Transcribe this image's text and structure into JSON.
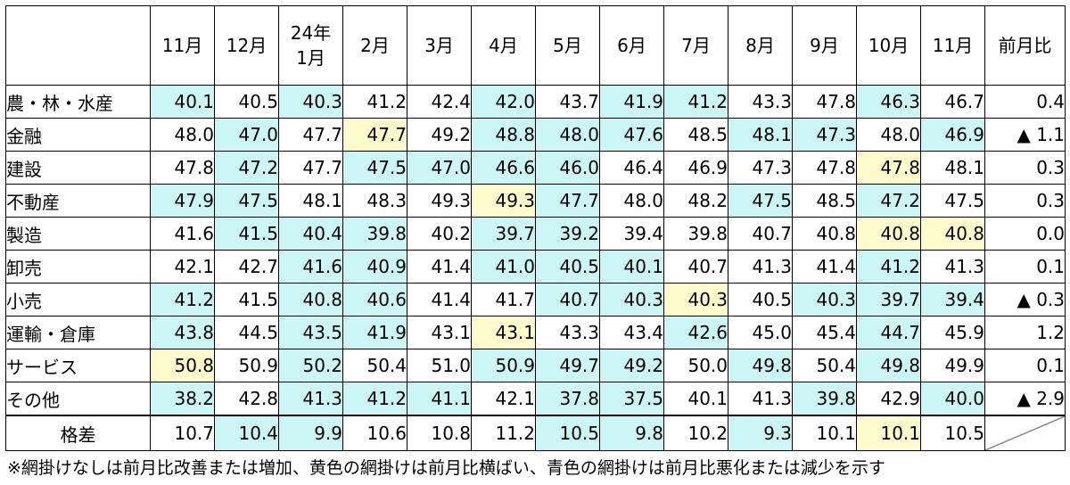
{
  "months": [
    "11月",
    "12月",
    "24年\n1月",
    "2月",
    "3月",
    "4月",
    "5月",
    "6月",
    "7月",
    "8月",
    "9月",
    "10月",
    "11月"
  ],
  "change_header": "前月比",
  "rows": [
    {
      "label": "農・林・水産",
      "values": [
        "40.1",
        "40.5",
        "40.3",
        "41.2",
        "42.4",
        "42.0",
        "43.7",
        "41.9",
        "41.2",
        "43.3",
        "47.8",
        "46.3",
        "46.7"
      ],
      "shade": [
        "b",
        "",
        "b",
        "",
        "",
        "b",
        "",
        "b",
        "b",
        "",
        "",
        "b",
        ""
      ],
      "change": "0.4"
    },
    {
      "label": "金融",
      "values": [
        "48.0",
        "47.0",
        "47.7",
        "47.7",
        "49.2",
        "48.8",
        "48.0",
        "47.6",
        "48.5",
        "48.1",
        "47.3",
        "48.0",
        "46.9"
      ],
      "shade": [
        "",
        "b",
        "",
        "y",
        "",
        "b",
        "b",
        "b",
        "",
        "b",
        "b",
        "",
        "b"
      ],
      "change": "▲ 1.1"
    },
    {
      "label": "建設",
      "values": [
        "47.8",
        "47.2",
        "47.7",
        "47.5",
        "47.0",
        "46.6",
        "46.0",
        "46.4",
        "46.9",
        "47.3",
        "47.8",
        "47.8",
        "48.1"
      ],
      "shade": [
        "",
        "b",
        "",
        "b",
        "b",
        "b",
        "b",
        "",
        "",
        "",
        "",
        "y",
        ""
      ],
      "change": "0.3"
    },
    {
      "label": "不動産",
      "values": [
        "47.9",
        "47.5",
        "48.1",
        "48.3",
        "49.3",
        "49.3",
        "47.7",
        "48.0",
        "48.2",
        "47.5",
        "48.5",
        "47.2",
        "47.5"
      ],
      "shade": [
        "b",
        "b",
        "",
        "",
        "",
        "y",
        "b",
        "",
        "",
        "b",
        "",
        "b",
        ""
      ],
      "change": "0.3"
    },
    {
      "label": "製造",
      "values": [
        "41.6",
        "41.5",
        "40.4",
        "39.8",
        "40.2",
        "39.7",
        "39.2",
        "39.4",
        "39.8",
        "40.7",
        "40.8",
        "40.8",
        "40.8"
      ],
      "shade": [
        "",
        "b",
        "b",
        "b",
        "",
        "b",
        "b",
        "",
        "",
        "",
        "",
        "y",
        "y"
      ],
      "change": "0.0"
    },
    {
      "label": "卸売",
      "values": [
        "42.1",
        "42.7",
        "41.6",
        "40.9",
        "41.4",
        "41.0",
        "40.5",
        "40.1",
        "40.7",
        "41.3",
        "41.4",
        "41.2",
        "41.3"
      ],
      "shade": [
        "",
        "",
        "b",
        "b",
        "",
        "b",
        "b",
        "b",
        "",
        "",
        "",
        "b",
        ""
      ],
      "change": "0.1"
    },
    {
      "label": "小売",
      "values": [
        "41.2",
        "41.5",
        "40.8",
        "40.6",
        "41.4",
        "41.7",
        "40.7",
        "40.3",
        "40.3",
        "40.5",
        "40.3",
        "39.7",
        "39.4"
      ],
      "shade": [
        "b",
        "",
        "b",
        "b",
        "",
        "",
        "b",
        "b",
        "y",
        "",
        "b",
        "b",
        "b"
      ],
      "change": "▲ 0.3"
    },
    {
      "label": "運輸・倉庫",
      "values": [
        "43.8",
        "44.5",
        "43.5",
        "41.9",
        "43.1",
        "43.1",
        "43.3",
        "43.4",
        "42.6",
        "45.0",
        "45.4",
        "44.7",
        "45.9"
      ],
      "shade": [
        "b",
        "",
        "b",
        "b",
        "",
        "y",
        "",
        "",
        "b",
        "",
        "",
        "b",
        ""
      ],
      "change": "1.2"
    },
    {
      "label": "サービス",
      "values": [
        "50.8",
        "50.9",
        "50.2",
        "50.4",
        "51.0",
        "50.9",
        "49.7",
        "49.2",
        "50.0",
        "49.8",
        "50.4",
        "49.8",
        "49.9"
      ],
      "shade": [
        "y",
        "",
        "b",
        "",
        "",
        "b",
        "b",
        "b",
        "",
        "b",
        "",
        "b",
        ""
      ],
      "change": "0.1"
    },
    {
      "label": "その他",
      "values": [
        "38.2",
        "42.8",
        "41.3",
        "41.2",
        "41.1",
        "42.1",
        "37.8",
        "37.5",
        "40.1",
        "41.3",
        "39.8",
        "42.9",
        "40.0"
      ],
      "shade": [
        "b",
        "",
        "b",
        "b",
        "b",
        "",
        "b",
        "b",
        "",
        "",
        "b",
        "",
        "b"
      ],
      "change": "▲ 2.9"
    }
  ],
  "gap_row": {
    "label": "格差",
    "values": [
      "10.7",
      "10.4",
      "9.9",
      "10.6",
      "10.8",
      "11.2",
      "10.5",
      "9.8",
      "10.2",
      "9.3",
      "10.1",
      "10.1",
      "10.5"
    ],
    "shade": [
      "",
      "b",
      "b",
      "",
      "",
      "",
      "b",
      "b",
      "",
      "b",
      "",
      "y",
      ""
    ]
  },
  "footnote": "※網掛けなしは前月比改善または増加、黄色の網掛けは前月比横ばい、青色の網掛けは前月比悪化または減少を示す",
  "colors": {
    "blue_shade": "#ccf5f5",
    "yellow_shade": "#fffacc"
  }
}
